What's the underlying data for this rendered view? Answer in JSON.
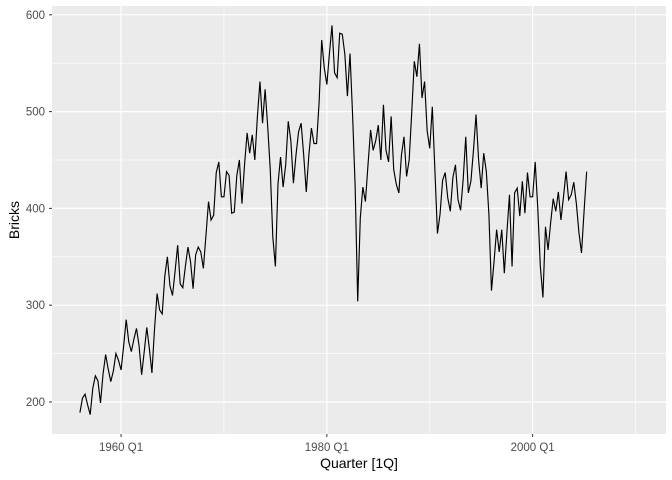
{
  "chart_data": {
    "type": "line",
    "title": "",
    "xlabel": "Quarter [1Q]",
    "ylabel": "Bricks",
    "series": [
      {
        "name": "Bricks",
        "start": "1956 Q1",
        "end": "2005 Q2",
        "frequency": "quarterly",
        "values": [
          189,
          204,
          208,
          197,
          187,
          214,
          227,
          222,
          199,
          229,
          249,
          234,
          221,
          232,
          250,
          243,
          233,
          258,
          285,
          262,
          252,
          265,
          276,
          258,
          228,
          252,
          277,
          255,
          230,
          275,
          312,
          295,
          291,
          330,
          350,
          320,
          310,
          335,
          362,
          322,
          318,
          340,
          360,
          345,
          317,
          352,
          360,
          355,
          338,
          372,
          407,
          388,
          393,
          437,
          448,
          412,
          412,
          438,
          434,
          395,
          396,
          434,
          450,
          405,
          445,
          478,
          457,
          476,
          450,
          495,
          531,
          488,
          523,
          485,
          440,
          370,
          340,
          425,
          453,
          422,
          445,
          490,
          470,
          426,
          455,
          479,
          488,
          455,
          417,
          455,
          483,
          467,
          467,
          510,
          574,
          545,
          528,
          560,
          589,
          540,
          535,
          581,
          580,
          559,
          516,
          560,
          497,
          423,
          304,
          390,
          422,
          407,
          445,
          481,
          460,
          470,
          486,
          450,
          507,
          460,
          448,
          495,
          440,
          425,
          416,
          455,
          474,
          433,
          450,
          499,
          552,
          536,
          570,
          514,
          531,
          480,
          462,
          505,
          440,
          374,
          394,
          429,
          437,
          411,
          397,
          432,
          445,
          409,
          398,
          430,
          474,
          416,
          428,
          460,
          497,
          450,
          421,
          457,
          438,
          394,
          315,
          345,
          378,
          355,
          378,
          333,
          375,
          414,
          340,
          416,
          421,
          392,
          428,
          395,
          437,
          412,
          412,
          448,
          400,
          340,
          308,
          381,
          357,
          385,
          410,
          397,
          417,
          388,
          412,
          438,
          409,
          414,
          427,
          405,
          375,
          354,
          397,
          438
        ]
      }
    ],
    "x_axis": {
      "tick_labels": [
        "1960 Q1",
        "1980 Q1",
        "2000 Q1"
      ],
      "tick_year_values": [
        1960,
        1980,
        2000
      ],
      "minor_gridline_years": [
        1970,
        1990,
        2010
      ],
      "domain": [
        1953.2875,
        2012.9625
      ]
    },
    "y_axis": {
      "tick_labels": [
        "200",
        "300",
        "400",
        "500",
        "600"
      ],
      "tick_values": [
        200,
        300,
        400,
        500,
        600
      ],
      "minor_gridline_values": [
        250,
        350,
        450,
        550
      ],
      "domain": [
        166.9,
        609.1
      ]
    },
    "legend": "none",
    "grid": true,
    "style": {
      "line_color": "#000000",
      "panel_background": "#EBEBEB",
      "grid_color": "#FFFFFF",
      "axis_text_color": "#4D4D4D",
      "axis_title_color": "#000000",
      "tick_mark_color": "#333333",
      "page_background": "#FFFFFF"
    }
  }
}
